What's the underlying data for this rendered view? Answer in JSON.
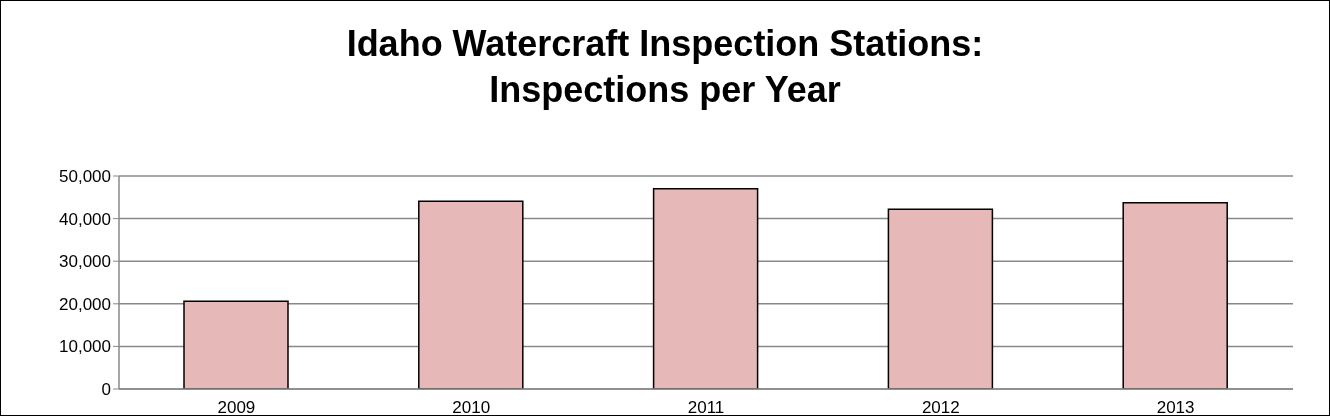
{
  "chart_data": {
    "type": "bar",
    "title": "Idaho Watercraft Inspection Stations: Inspections per Year",
    "categories": [
      "2009",
      "2010",
      "2011",
      "2012",
      "2013"
    ],
    "values": [
      20600,
      44100,
      47000,
      42200,
      43700
    ],
    "color": "#e6b8b7",
    "ylim": [
      0,
      50000
    ],
    "yticks": [
      0,
      {
        "value": 10000,
        "label": "10,000"
      },
      {
        "value": 20000,
        "label": "20,000"
      },
      {
        "value": 30000,
        "label": "30,000"
      },
      {
        "value": 40000,
        "label": "40,000"
      },
      {
        "value": 50000,
        "label": "50,000"
      }
    ],
    "grid": "y"
  }
}
